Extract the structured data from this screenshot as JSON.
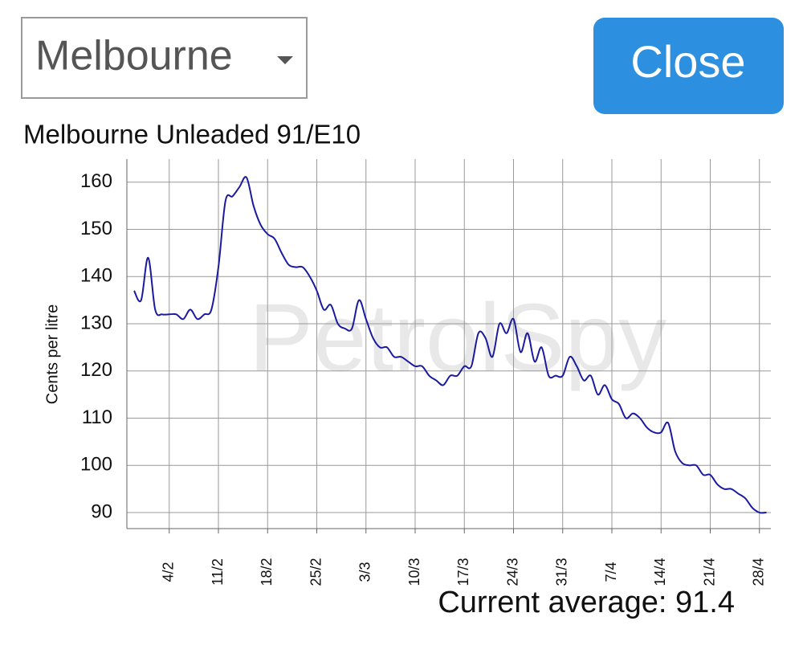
{
  "dropdown": {
    "label": "Melbourne"
  },
  "close_button": {
    "label": "Close"
  },
  "watermark": "PetrolSpy",
  "chart_data": {
    "type": "line",
    "title": "Melbourne Unleaded 91/E10",
    "y_label": "Cents per litre",
    "categories": [
      null,
      null,
      null,
      null,
      null,
      "4/2",
      null,
      null,
      null,
      null,
      null,
      null,
      "11/2",
      null,
      null,
      null,
      null,
      null,
      null,
      "18/2",
      null,
      null,
      null,
      null,
      null,
      null,
      "25/2",
      null,
      null,
      null,
      null,
      null,
      null,
      "3/3",
      null,
      null,
      null,
      null,
      null,
      null,
      "10/3",
      null,
      null,
      null,
      null,
      null,
      null,
      "17/3",
      null,
      null,
      null,
      null,
      null,
      null,
      "24/3",
      null,
      null,
      null,
      null,
      null,
      null,
      "31/3",
      null,
      null,
      null,
      null,
      null,
      null,
      "7/4",
      null,
      null,
      null,
      null,
      null,
      null,
      "14/4",
      null,
      null,
      null,
      null,
      null,
      null,
      "21/4",
      null,
      null,
      null,
      null,
      null,
      null,
      "28/4",
      null
    ],
    "series": [
      {
        "name": "Unleaded 91/E10",
        "color": "#1a1aa0",
        "values": [
          137,
          135,
          144,
          133,
          132,
          132,
          132,
          131,
          133,
          131,
          132,
          133,
          142,
          156,
          157,
          159,
          161,
          155,
          151,
          149,
          148,
          145,
          142.5,
          142,
          142,
          140,
          137,
          133,
          134,
          130,
          129,
          129,
          135,
          131,
          127,
          125,
          125,
          123,
          123,
          122,
          121,
          121,
          119,
          118,
          117,
          119,
          119,
          121,
          121,
          128,
          127,
          123,
          130,
          128,
          131,
          124,
          128,
          122,
          125,
          119,
          119,
          119,
          123,
          121,
          118,
          119,
          115,
          117,
          114,
          113,
          110,
          111,
          110,
          108,
          107,
          107,
          109,
          103,
          100.5,
          100,
          100,
          98,
          98,
          96,
          95,
          95,
          94,
          93,
          91,
          90,
          90
        ]
      }
    ],
    "ylim": [
      86.6,
      164.9
    ],
    "yticks": [
      90,
      100,
      110,
      120,
      130,
      140,
      150,
      160
    ],
    "grid": true
  },
  "footer": "Current average: 91.4"
}
